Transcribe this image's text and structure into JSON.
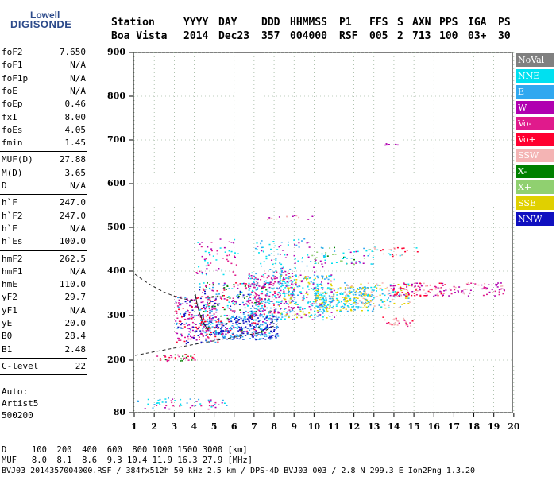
{
  "logo": {
    "top": "Lowell",
    "main": "DIGISONDE"
  },
  "header": {
    "labels": [
      "Station",
      "YYYY",
      "DAY",
      "DDD",
      "HHMMSS",
      "P1",
      "FFS",
      "S",
      "AXN",
      "PPS",
      "IGA",
      "PS"
    ],
    "values": [
      "Boa Vista",
      "2014",
      "Dec23",
      "357",
      "004000",
      "RSF",
      "005",
      "2",
      "713",
      "100",
      "03+",
      "30"
    ]
  },
  "params": {
    "group1": [
      {
        "k": "foF2",
        "v": "7.650"
      },
      {
        "k": "foF1",
        "v": "N/A"
      },
      {
        "k": "foF1p",
        "v": "N/A"
      },
      {
        "k": "foE",
        "v": "N/A"
      },
      {
        "k": "foEp",
        "v": "0.46"
      },
      {
        "k": "fxI",
        "v": "8.00"
      },
      {
        "k": "foEs",
        "v": "4.05"
      },
      {
        "k": "fmin",
        "v": "1.45"
      }
    ],
    "group2": [
      {
        "k": "MUF(D)",
        "v": "27.88"
      },
      {
        "k": "M(D)",
        "v": "3.65"
      },
      {
        "k": "D",
        "v": "N/A"
      }
    ],
    "group3": [
      {
        "k": "h`F",
        "v": "247.0"
      },
      {
        "k": "h`F2",
        "v": "247.0"
      },
      {
        "k": "h`E",
        "v": "N/A"
      },
      {
        "k": "h`Es",
        "v": "100.0"
      }
    ],
    "group4": [
      {
        "k": "hmF2",
        "v": "262.5"
      },
      {
        "k": "hmF1",
        "v": "N/A"
      },
      {
        "k": "hmE",
        "v": "110.0"
      },
      {
        "k": "yF2",
        "v": "29.7"
      },
      {
        "k": "yF1",
        "v": "N/A"
      },
      {
        "k": "yE",
        "v": "20.0"
      },
      {
        "k": "B0",
        "v": "28.4"
      },
      {
        "k": "B1",
        "v": "2.48"
      }
    ],
    "group5": [
      {
        "k": "C-level",
        "v": "22"
      }
    ]
  },
  "auto": {
    "l1": "Auto:",
    "l2": "Artist5",
    "l3": "500200"
  },
  "legend": [
    {
      "label": "NoVal",
      "color": "#808080"
    },
    {
      "label": "NNE",
      "color": "#00e0f0"
    },
    {
      "label": "E",
      "color": "#30a8f0"
    },
    {
      "label": "W",
      "color": "#b000b0"
    },
    {
      "label": "Vo-",
      "color": "#e01a8c"
    },
    {
      "label": "Vo+",
      "color": "#ff0030"
    },
    {
      "label": "SSW",
      "color": "#f4b4b4"
    },
    {
      "label": "X-",
      "color": "#008000"
    },
    {
      "label": "X+",
      "color": "#90d070"
    },
    {
      "label": "SSE",
      "color": "#e0d000"
    },
    {
      "label": "NNW",
      "color": "#1010c0"
    }
  ],
  "axes": {
    "y_ticks": [
      "900",
      "800",
      "700",
      "600",
      "500",
      "400",
      "300",
      "200",
      "80"
    ],
    "x_ticks": [
      "1",
      "2",
      "3",
      "4",
      "5",
      "6",
      "7",
      "8",
      "9",
      "10",
      "11",
      "12",
      "13",
      "14",
      "15",
      "16",
      "17",
      "18",
      "19",
      "20"
    ]
  },
  "footer": {
    "d_row": "D     100  200  400  600  800 1000 1500 3000 [km]",
    "muf_row": "MUF   8.0  8.1  8.6  9.3 10.4 11.9 16.3 27.9 [MHz]",
    "file_row": "BVJ03_2014357004000.RSF / 384fx512h 50 kHz 2.5 km / DPS-4D BVJ03 003 / 2.8 N 299.3 E Ion2Png 1.3.20"
  }
}
